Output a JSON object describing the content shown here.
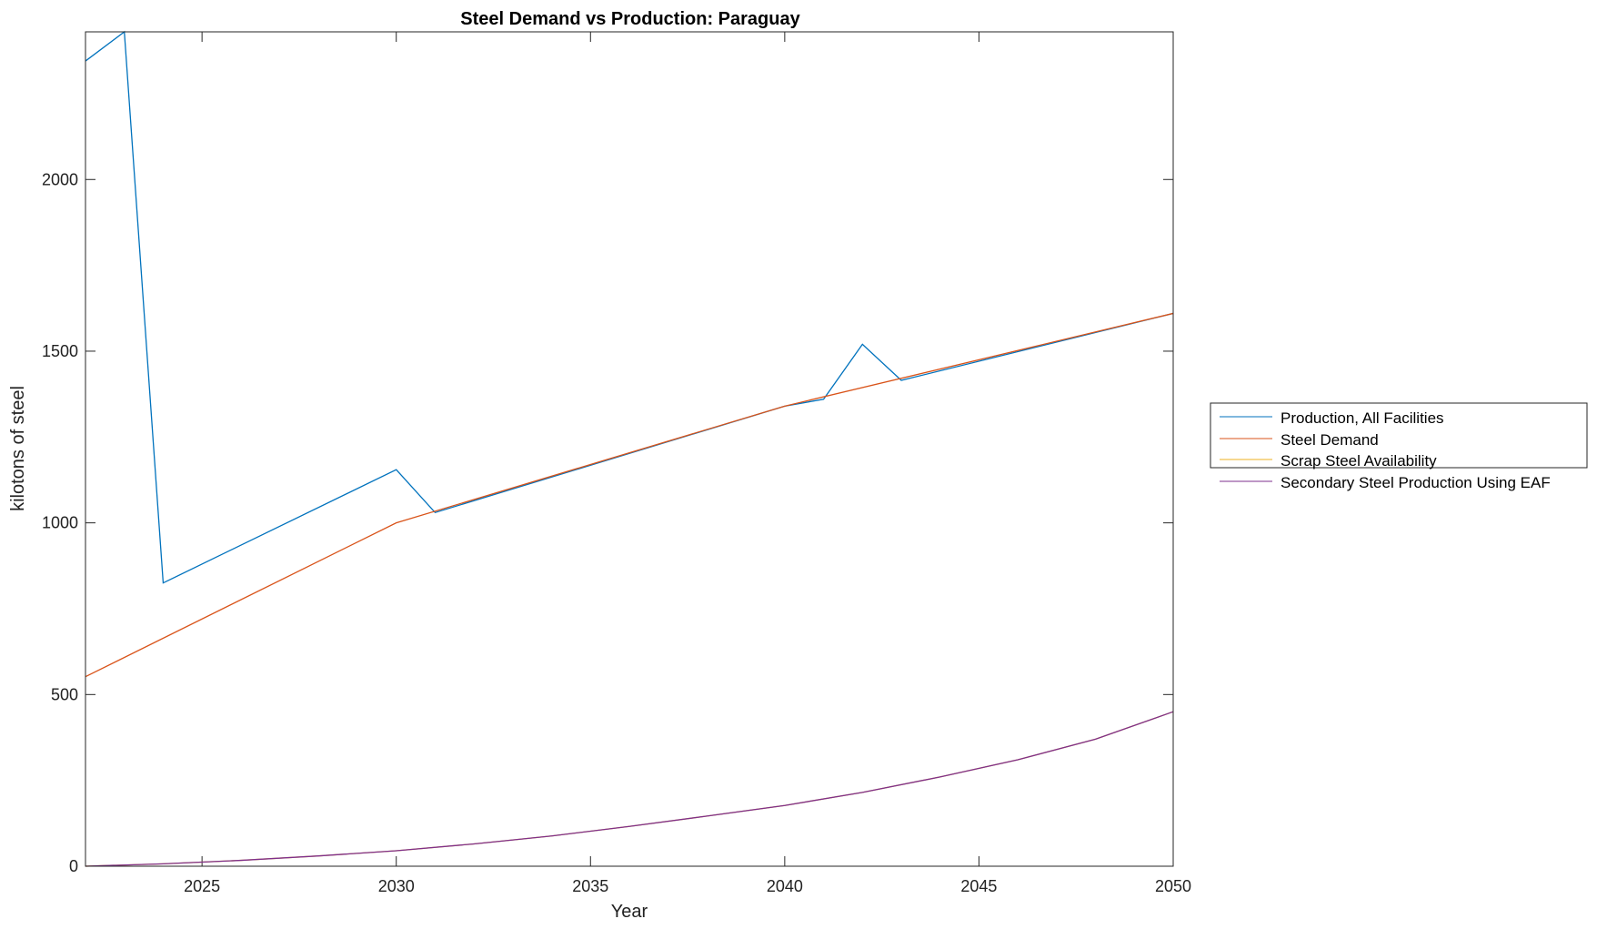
{
  "chart_data": {
    "type": "line",
    "title": "Steel Demand vs Production: Paraguay",
    "xlabel": "Year",
    "ylabel": "kilotons of steel",
    "xlim": [
      2022,
      2050
    ],
    "ylim": [
      0,
      2430
    ],
    "xticks": [
      "2025",
      "2030",
      "2035",
      "2040",
      "2045",
      "2050"
    ],
    "yticks": [
      "0",
      "500",
      "1000",
      "1500",
      "2000"
    ],
    "grid": false,
    "legend_position": "right",
    "series": [
      {
        "name": "Production, All Facilities",
        "color": "#0072BD",
        "x": [
          2022,
          2023,
          2024,
          2030,
          2031,
          2040,
          2041,
          2042,
          2043,
          2050
        ],
        "y": [
          2345,
          2430,
          825,
          1155,
          1030,
          1340,
          1360,
          1520,
          1415,
          1610
        ]
      },
      {
        "name": "Steel Demand",
        "color": "#D95319",
        "x": [
          2022,
          2030,
          2040,
          2050
        ],
        "y": [
          552,
          1000,
          1340,
          1610
        ]
      },
      {
        "name": "Scrap Steel Availability",
        "color": "#EDB120",
        "x": [
          2022,
          2024,
          2026,
          2028,
          2030,
          2032,
          2034,
          2036,
          2038,
          2040,
          2042,
          2044,
          2046,
          2048,
          2050
        ],
        "y": [
          0,
          7,
          17,
          30,
          45,
          65,
          88,
          116,
          146,
          177,
          215,
          260,
          310,
          370,
          450
        ]
      },
      {
        "name": "Secondary Steel Production Using EAF",
        "color": "#7E2F8E",
        "x": [
          2022,
          2024,
          2026,
          2028,
          2030,
          2032,
          2034,
          2036,
          2038,
          2040,
          2042,
          2044,
          2046,
          2048,
          2050
        ],
        "y": [
          0,
          7,
          17,
          30,
          45,
          65,
          88,
          116,
          146,
          177,
          215,
          260,
          310,
          370,
          450
        ]
      }
    ]
  }
}
